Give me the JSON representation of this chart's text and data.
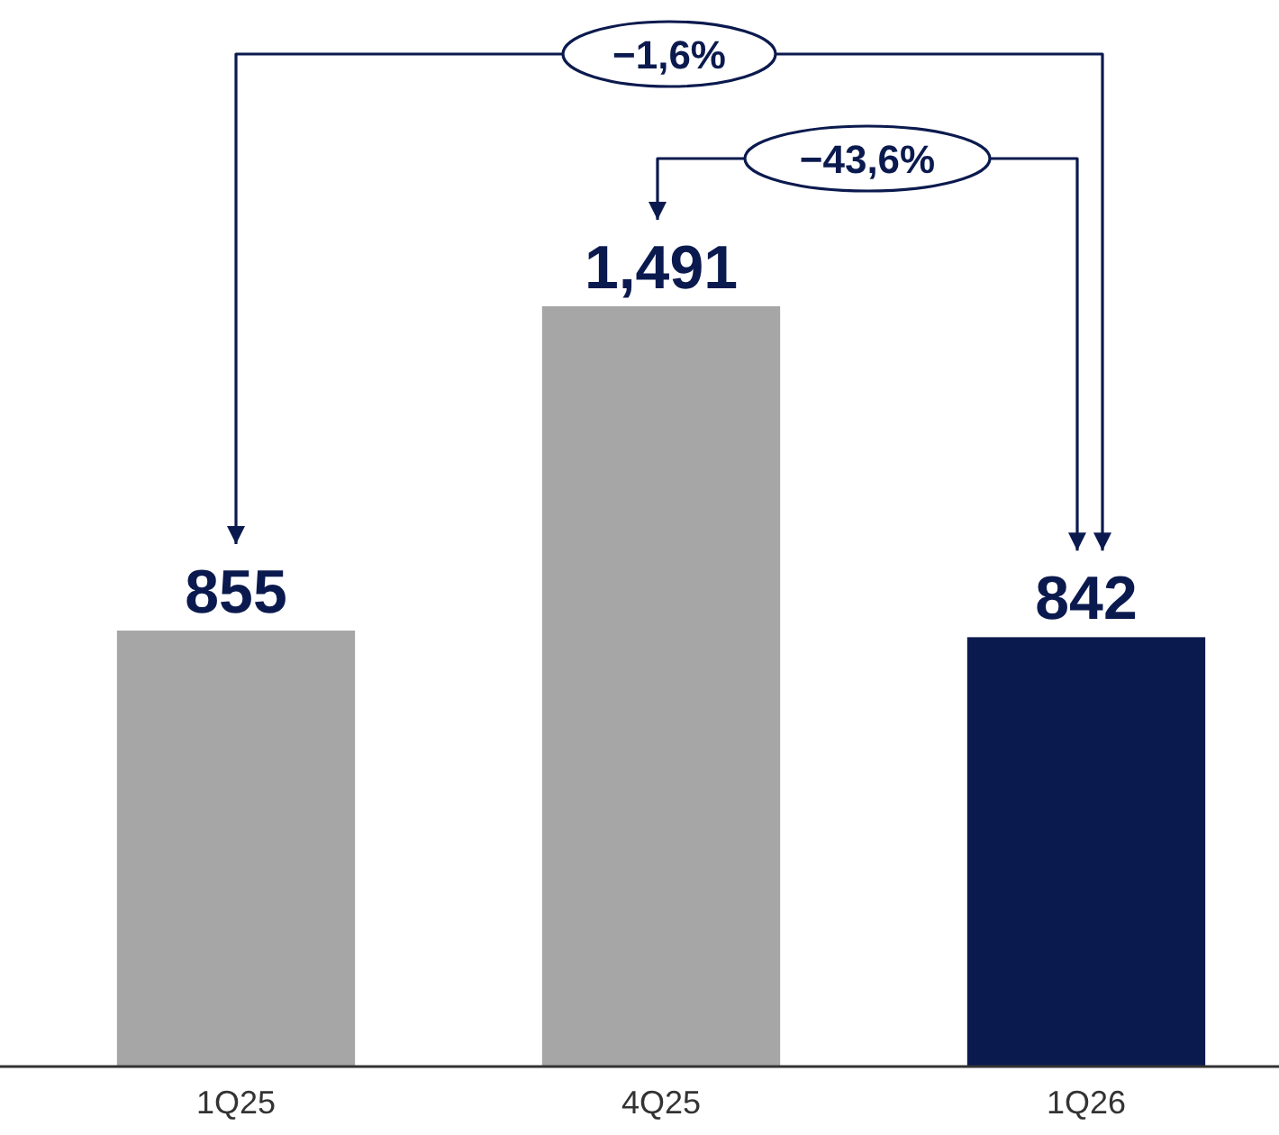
{
  "chart_data": {
    "type": "bar",
    "categories": [
      "1Q25",
      "4Q25",
      "1Q26"
    ],
    "values": [
      855,
      1491,
      842
    ],
    "colors": [
      "#a6a6a6",
      "#a6a6a6",
      "#0b1a4e"
    ],
    "value_labels": [
      "855",
      "1,491",
      "842"
    ],
    "annotations": [
      "−1,6%",
      "−43,6%"
    ]
  }
}
